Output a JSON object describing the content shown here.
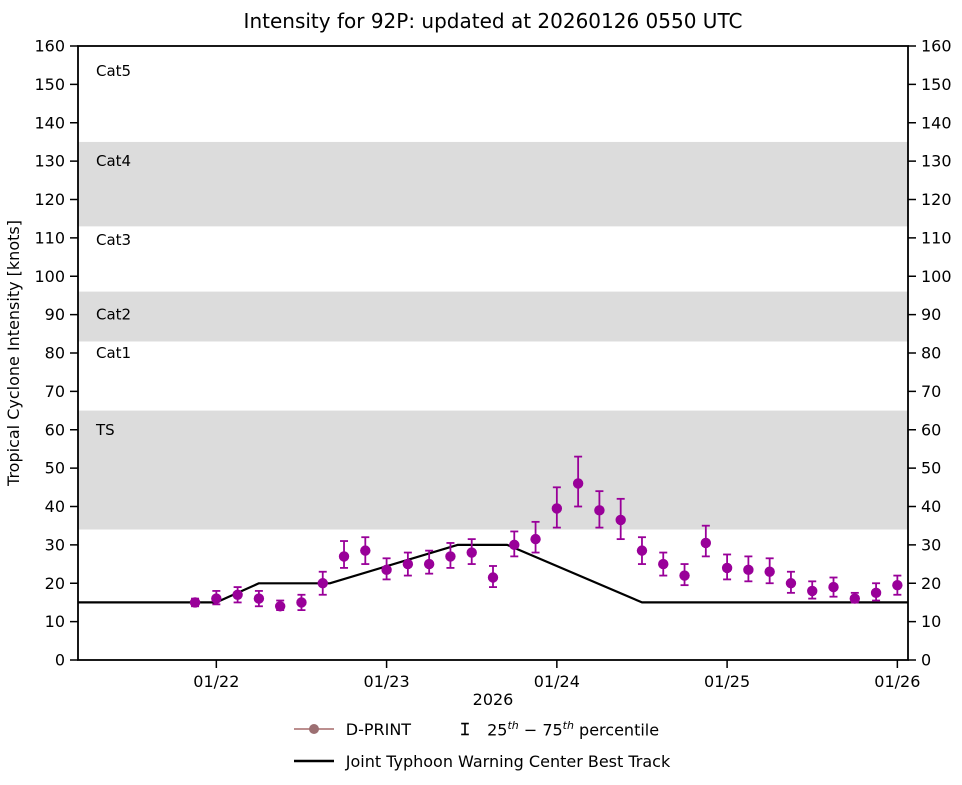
{
  "title": "Intensity for 92P: updated at 20260126 0550 UTC",
  "axes": {
    "ylabel": "Tropical Cyclone Intensity [knots]",
    "xlabel": "2026",
    "ylim": [
      0,
      160
    ],
    "ytick_step": 10,
    "x_domain_hours": [
      4.5,
      121.5
    ],
    "x_ticks": [
      {
        "hour": 24,
        "label": "01/22"
      },
      {
        "hour": 48,
        "label": "01/23"
      },
      {
        "hour": 72,
        "label": "01/24"
      },
      {
        "hour": 96,
        "label": "01/25"
      },
      {
        "hour": 120,
        "label": "01/26"
      }
    ]
  },
  "bands": [
    {
      "label": "TS",
      "from": 34,
      "to": 65,
      "shaded": true,
      "label_at": 60
    },
    {
      "label": "Cat1",
      "from": 65,
      "to": 83,
      "shaded": false,
      "label_at": 80
    },
    {
      "label": "Cat2",
      "from": 83,
      "to": 96,
      "shaded": true,
      "label_at": 90
    },
    {
      "label": "Cat3",
      "from": 96,
      "to": 113,
      "shaded": false,
      "label_at": 109.5
    },
    {
      "label": "Cat4",
      "from": 113,
      "to": 135,
      "shaded": true,
      "label_at": 130
    },
    {
      "label": "Cat5",
      "from": 135,
      "to": 160,
      "shaded": false,
      "label_at": 153.5
    }
  ],
  "colors": {
    "dprint": "#990099",
    "errorbar": "#990099",
    "best_track": "#000000",
    "band": "#dcdcdc",
    "legend_line": "#bc8f8f",
    "legend_dot": "#9c6f72",
    "percentile_glyph": "#000000"
  },
  "chart_data": {
    "type": "scatter",
    "title": "Intensity for 92P: updated at 20260126 0550 UTC",
    "xlabel": "2026",
    "ylabel": "Tropical Cyclone Intensity [knots]",
    "ylim": [
      0,
      160
    ],
    "x_unit": "hours since 2026-01-21 00:00 UTC",
    "series": [
      {
        "name": "D-PRINT",
        "type": "scatter_with_errorbars",
        "points": [
          {
            "hour": 21,
            "value": 15,
            "p25": 14,
            "p75": 16
          },
          {
            "hour": 24,
            "value": 16,
            "p25": 14.5,
            "p75": 18
          },
          {
            "hour": 27,
            "value": 17,
            "p25": 15,
            "p75": 19
          },
          {
            "hour": 30,
            "value": 16,
            "p25": 14,
            "p75": 18
          },
          {
            "hour": 33,
            "value": 14,
            "p25": 13,
            "p75": 15.5
          },
          {
            "hour": 36,
            "value": 15,
            "p25": 13,
            "p75": 17
          },
          {
            "hour": 39,
            "value": 20,
            "p25": 17,
            "p75": 23
          },
          {
            "hour": 42,
            "value": 27,
            "p25": 24,
            "p75": 31
          },
          {
            "hour": 45,
            "value": 28.5,
            "p25": 25,
            "p75": 32
          },
          {
            "hour": 48,
            "value": 23.5,
            "p25": 21,
            "p75": 26.5
          },
          {
            "hour": 51,
            "value": 25,
            "p25": 22,
            "p75": 28
          },
          {
            "hour": 54,
            "value": 25,
            "p25": 22.5,
            "p75": 28.5
          },
          {
            "hour": 57,
            "value": 27,
            "p25": 24,
            "p75": 30.5
          },
          {
            "hour": 60,
            "value": 28,
            "p25": 25,
            "p75": 31.5
          },
          {
            "hour": 63,
            "value": 21.5,
            "p25": 19,
            "p75": 24.5
          },
          {
            "hour": 66,
            "value": 30,
            "p25": 27,
            "p75": 33.5
          },
          {
            "hour": 69,
            "value": 31.5,
            "p25": 28,
            "p75": 36
          },
          {
            "hour": 72,
            "value": 39.5,
            "p25": 34.5,
            "p75": 45
          },
          {
            "hour": 75,
            "value": 46,
            "p25": 40,
            "p75": 53
          },
          {
            "hour": 78,
            "value": 39,
            "p25": 34.5,
            "p75": 44
          },
          {
            "hour": 81,
            "value": 36.5,
            "p25": 31.5,
            "p75": 42
          },
          {
            "hour": 84,
            "value": 28.5,
            "p25": 25,
            "p75": 32
          },
          {
            "hour": 87,
            "value": 25,
            "p25": 22,
            "p75": 28
          },
          {
            "hour": 90,
            "value": 22,
            "p25": 19.5,
            "p75": 25
          },
          {
            "hour": 93,
            "value": 30.5,
            "p25": 27,
            "p75": 35
          },
          {
            "hour": 96,
            "value": 24,
            "p25": 21,
            "p75": 27.5
          },
          {
            "hour": 99,
            "value": 23.5,
            "p25": 20.5,
            "p75": 27
          },
          {
            "hour": 102,
            "value": 23,
            "p25": 20,
            "p75": 26.5
          },
          {
            "hour": 105,
            "value": 20,
            "p25": 17.5,
            "p75": 23
          },
          {
            "hour": 108,
            "value": 18,
            "p25": 16,
            "p75": 20.5
          },
          {
            "hour": 111,
            "value": 19,
            "p25": 16.5,
            "p75": 21.5
          },
          {
            "hour": 114,
            "value": 16,
            "p25": 15,
            "p75": 17.5
          },
          {
            "hour": 117,
            "value": 17.5,
            "p25": 15.5,
            "p75": 20
          },
          {
            "hour": 120,
            "value": 19.5,
            "p25": 17,
            "p75": 22
          }
        ]
      },
      {
        "name": "Joint Typhoon Warning Center Best Track",
        "type": "line",
        "points": [
          [
            4.5,
            15
          ],
          [
            24,
            15
          ],
          [
            30,
            20
          ],
          [
            40,
            20
          ],
          [
            58,
            30
          ],
          [
            65,
            30
          ],
          [
            84,
            15
          ],
          [
            121.5,
            15
          ]
        ]
      }
    ]
  },
  "legend": {
    "dprint_label": "D-PRINT",
    "percentile": {
      "n1": "25",
      "s1": "th",
      "n2": " − 75",
      "s2": "th",
      "rest": " percentile"
    },
    "best_track_label": "Joint Typhoon Warning Center Best Track"
  }
}
